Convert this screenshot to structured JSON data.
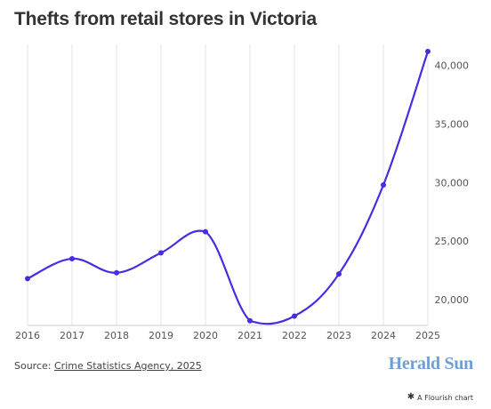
{
  "title": "Thefts from retail stores in Victoria",
  "source": {
    "prefix": "Source: ",
    "link_text": "Crime Statistics Agency, 2025"
  },
  "brand": "Herald Sun",
  "credit": "A Flourish chart",
  "credit_icon": "asterisk-icon",
  "colors": {
    "line": "#4a2be0",
    "grid": "#e6e6e6",
    "axis_text": "#555555"
  },
  "chart_data": {
    "type": "line",
    "title": "Thefts from retail stores in Victoria",
    "x": [
      "2016",
      "2017",
      "2018",
      "2019",
      "2020",
      "2021",
      "2022",
      "2023",
      "2024",
      "2025"
    ],
    "series": [
      {
        "values": [
          21800,
          23500,
          22300,
          24000,
          25800,
          18200,
          18600,
          22200,
          29800,
          41200
        ]
      }
    ],
    "y_ticks": [
      20000,
      25000,
      30000,
      35000,
      40000
    ],
    "y_tick_labels": [
      "20,000",
      "25,000",
      "30,000",
      "35,000",
      "40,000"
    ],
    "ylim": [
      17800,
      41800
    ],
    "y_axis_side": "right",
    "grid": false,
    "xlabel": "",
    "ylabel": ""
  }
}
